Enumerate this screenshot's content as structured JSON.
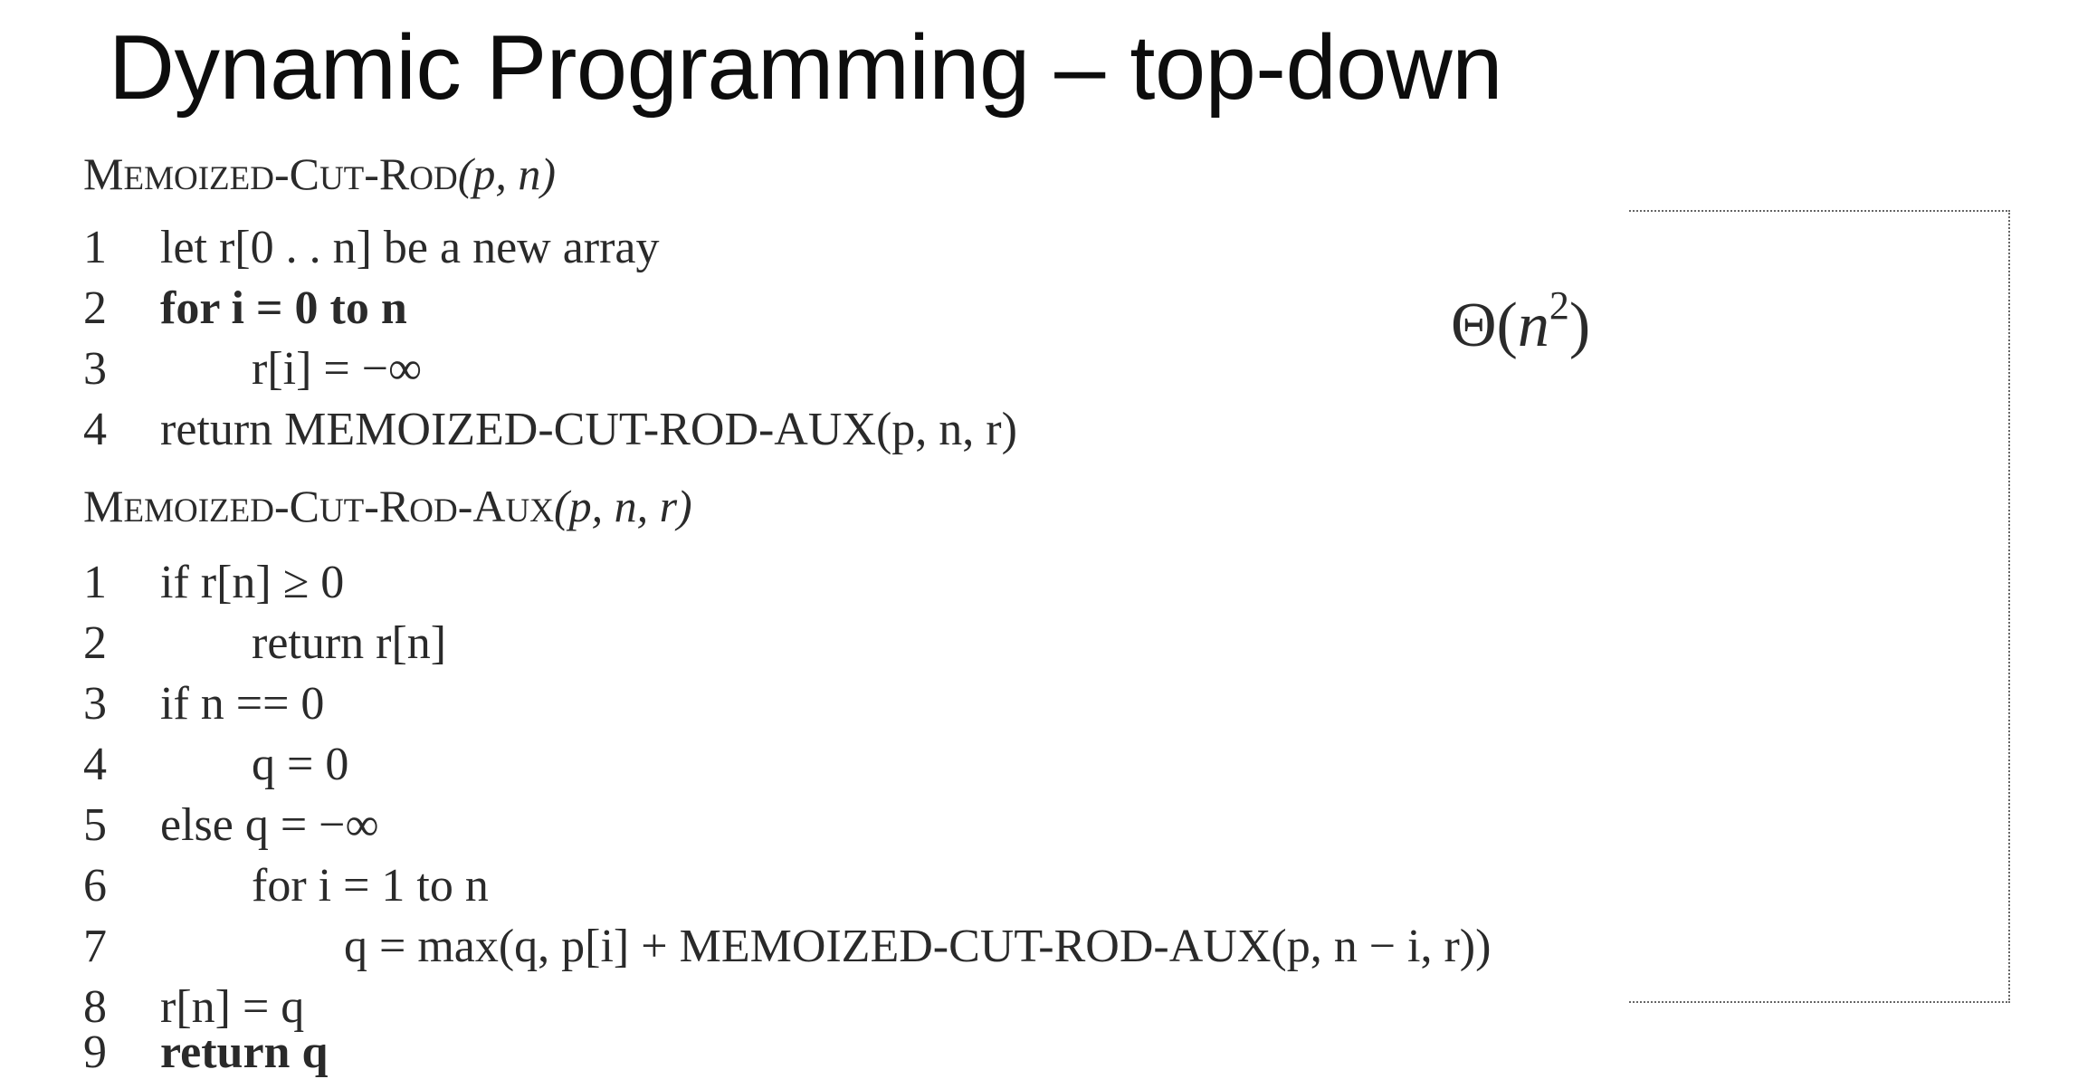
{
  "slide": {
    "title": "Dynamic Programming – top-down"
  },
  "complexity": {
    "prefix": "Θ(",
    "var": "n",
    "exp": "2",
    "suffix": ")"
  },
  "proc1": {
    "name_parts": [
      "M",
      "EMOIZED",
      "-C",
      "UT",
      "-R",
      "OD"
    ],
    "args": "(p, n)",
    "lines": [
      {
        "num": "1",
        "text": "let r[0 . . n] be a new array"
      },
      {
        "num": "2",
        "text": "for i = 0 to n"
      },
      {
        "num": "3",
        "text": "r[i] = −∞"
      },
      {
        "num": "4",
        "text": "return MEMOIZED-CUT-ROD-AUX(p, n, r)"
      }
    ]
  },
  "proc2": {
    "name_parts": [
      "M",
      "EMOIZED",
      "-C",
      "UT",
      "-R",
      "OD",
      "-A",
      "UX"
    ],
    "args": "(p, n, r)",
    "lines": [
      {
        "num": "1",
        "text": "if r[n] ≥ 0"
      },
      {
        "num": "2",
        "text": "return r[n]"
      },
      {
        "num": "3",
        "text": "if n == 0"
      },
      {
        "num": "4",
        "text": "q = 0"
      },
      {
        "num": "5",
        "text": "else q = −∞"
      },
      {
        "num": "6",
        "text": "for i = 1 to n"
      },
      {
        "num": "7",
        "text": "q = max(q, p[i] + MEMOIZED-CUT-ROD-AUX(p, n − i, r))"
      },
      {
        "num": "8",
        "text": "r[n] = q"
      },
      {
        "num": "9",
        "text": "return q"
      }
    ]
  }
}
